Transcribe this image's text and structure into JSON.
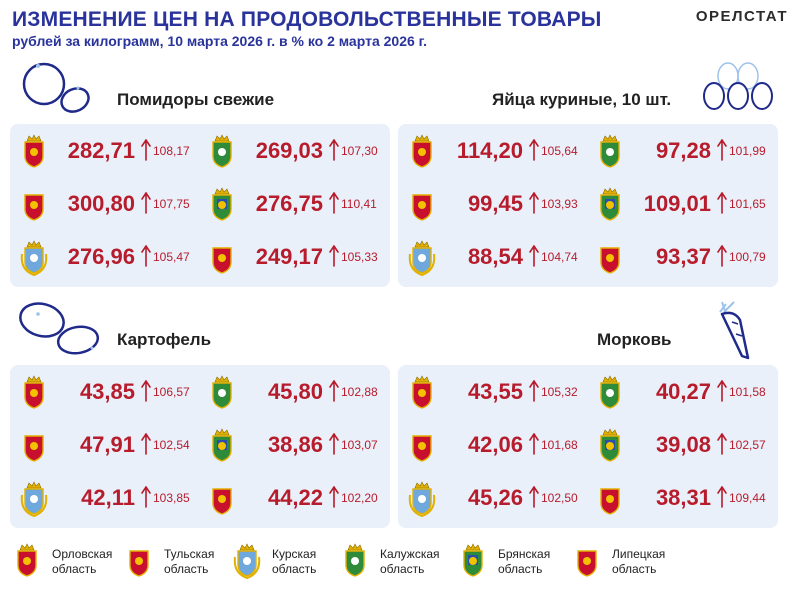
{
  "header": {
    "title": "ИЗМЕНЕНИЕ ЦЕН НА ПРОДОВОЛЬСТВЕННЫЕ ТОВАРЫ",
    "subtitle": "рублей за килограмм, 10 марта 2026 г. в % ко 2 марта 2026 г.",
    "brand": "ОРЕЛСТАТ"
  },
  "colors": {
    "title": "#29339b",
    "price": "#b71c2c",
    "panel": "#e9f0fa"
  },
  "products": [
    {
      "name": "Помидоры свежие",
      "icon": "tomato-outline-icon",
      "cells": [
        {
          "region": "orel",
          "price": "282,71",
          "pct": "108,17"
        },
        {
          "region": "kaluga",
          "price": "269,03",
          "pct": "107,30"
        },
        {
          "region": "tula",
          "price": "300,80",
          "pct": "107,75"
        },
        {
          "region": "bryansk",
          "price": "276,75",
          "pct": "110,41"
        },
        {
          "region": "kursk",
          "price": "276,96",
          "pct": "105,47"
        },
        {
          "region": "lipetsk",
          "price": "249,17",
          "pct": "105,33"
        }
      ]
    },
    {
      "name": "Яйца куриные, 10 шт.",
      "icon": "eggs-icon",
      "cells": [
        {
          "region": "orel",
          "price": "114,20",
          "pct": "105,64"
        },
        {
          "region": "kaluga",
          "price": "97,28",
          "pct": "101,99"
        },
        {
          "region": "tula",
          "price": "99,45",
          "pct": "103,93"
        },
        {
          "region": "bryansk",
          "price": "109,01",
          "pct": "101,65"
        },
        {
          "region": "kursk",
          "price": "88,54",
          "pct": "104,74"
        },
        {
          "region": "lipetsk",
          "price": "93,37",
          "pct": "100,79"
        }
      ]
    },
    {
      "name": "Картофель",
      "icon": "potato-outline-icon",
      "cells": [
        {
          "region": "orel",
          "price": "43,85",
          "pct": "106,57"
        },
        {
          "region": "kaluga",
          "price": "45,80",
          "pct": "102,88"
        },
        {
          "region": "tula",
          "price": "47,91",
          "pct": "102,54"
        },
        {
          "region": "bryansk",
          "price": "38,86",
          "pct": "103,07"
        },
        {
          "region": "kursk",
          "price": "42,11",
          "pct": "103,85"
        },
        {
          "region": "lipetsk",
          "price": "44,22",
          "pct": "102,20"
        }
      ]
    },
    {
      "name": "Морковь",
      "icon": "carrot-outline-icon",
      "cells": [
        {
          "region": "orel",
          "price": "43,55",
          "pct": "105,32"
        },
        {
          "region": "kaluga",
          "price": "40,27",
          "pct": "101,58"
        },
        {
          "region": "tula",
          "price": "42,06",
          "pct": "101,68"
        },
        {
          "region": "bryansk",
          "price": "39,08",
          "pct": "102,57"
        },
        {
          "region": "kursk",
          "price": "45,26",
          "pct": "102,50"
        },
        {
          "region": "lipetsk",
          "price": "38,31",
          "pct": "109,44"
        }
      ]
    }
  ],
  "legend": [
    {
      "region": "orel",
      "line1": "Орловская",
      "line2": "область"
    },
    {
      "region": "tula",
      "line1": "Тульская",
      "line2": "область"
    },
    {
      "region": "kursk",
      "line1": "Курская",
      "line2": "область"
    },
    {
      "region": "kaluga",
      "line1": "Калужская",
      "line2": "область"
    },
    {
      "region": "bryansk",
      "line1": "Брянская",
      "line2": "область"
    },
    {
      "region": "lipetsk",
      "line1": "Липецкая",
      "line2": "область"
    }
  ]
}
